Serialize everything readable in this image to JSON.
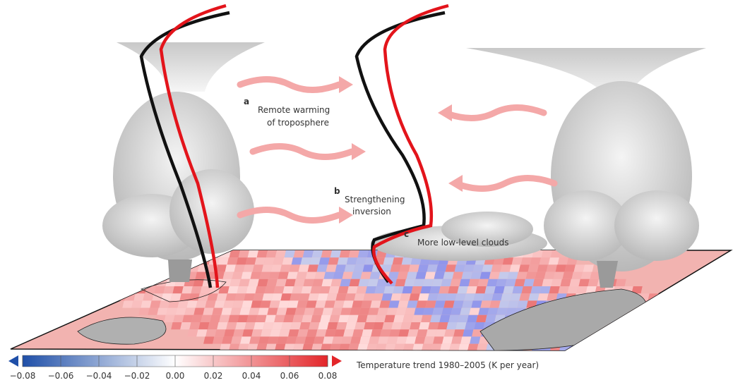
{
  "annotations": {
    "a": {
      "letter": "a",
      "lines": [
        "Remote warming",
        "of troposphere"
      ]
    },
    "b": {
      "letter": "b",
      "lines": [
        "Strengthening",
        "inversion"
      ]
    },
    "c": {
      "letter": "c",
      "lines": [
        "More low-level clouds"
      ]
    }
  },
  "colorbar": {
    "label": "Temperature trend 1980–2005 (K per year)",
    "ticks": [
      {
        "value": -0.08,
        "label": "−0.08"
      },
      {
        "value": -0.06,
        "label": "−0.06"
      },
      {
        "value": -0.04,
        "label": "−0.04"
      },
      {
        "value": -0.02,
        "label": "−0.02"
      },
      {
        "value": 0,
        "label": "0.00"
      },
      {
        "value": 0.02,
        "label": "0.02"
      },
      {
        "value": 0.04,
        "label": "0.04"
      },
      {
        "value": 0.06,
        "label": "0.06"
      },
      {
        "value": 0.08,
        "label": "0.08"
      }
    ]
  }
}
